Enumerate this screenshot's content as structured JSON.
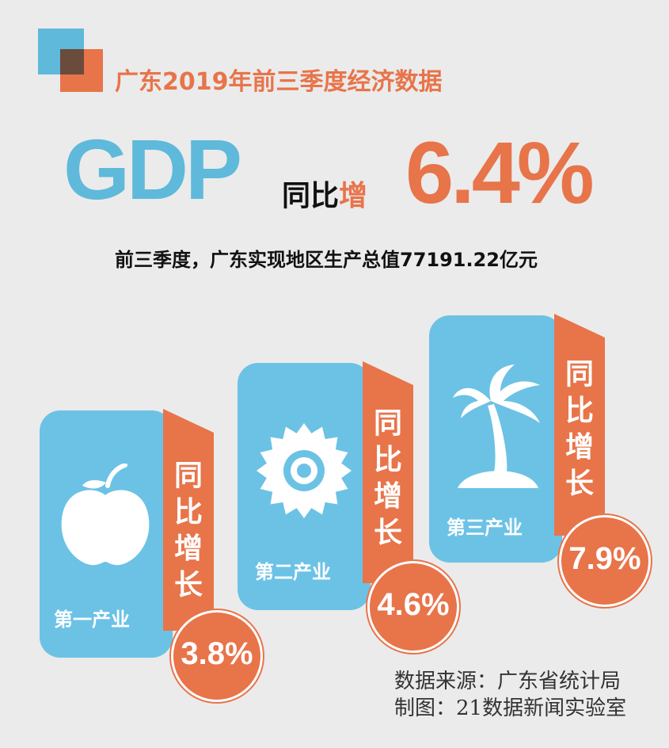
{
  "title": "广东2019年前三季度经济数据",
  "headline": {
    "gdp": "GDP",
    "yoy_prefix": "同比",
    "yoy_inc": "增",
    "rate": "6.4%"
  },
  "subtitle": "前三季度，广东实现地区生产总值77191.22亿元",
  "industries": [
    {
      "label": "第一产业",
      "ribbon": [
        "同",
        "比",
        "增",
        "长"
      ],
      "rate": "3.8%",
      "icon": "apple-icon"
    },
    {
      "label": "第二产业",
      "ribbon": [
        "同",
        "比",
        "增",
        "长"
      ],
      "rate": "4.6%",
      "icon": "sun-icon"
    },
    {
      "label": "第三产业",
      "ribbon": [
        "同",
        "比",
        "增",
        "长"
      ],
      "rate": "7.9%",
      "icon": "palm-tree-icon"
    }
  ],
  "source": {
    "line1": "数据来源：广东省统计局",
    "line2": "制图：21数据新闻实验室"
  },
  "colors": {
    "blue": "#5fb9da",
    "card_blue": "#6cc2e5",
    "orange": "#e8744a",
    "dark": "#6a4b3c"
  }
}
